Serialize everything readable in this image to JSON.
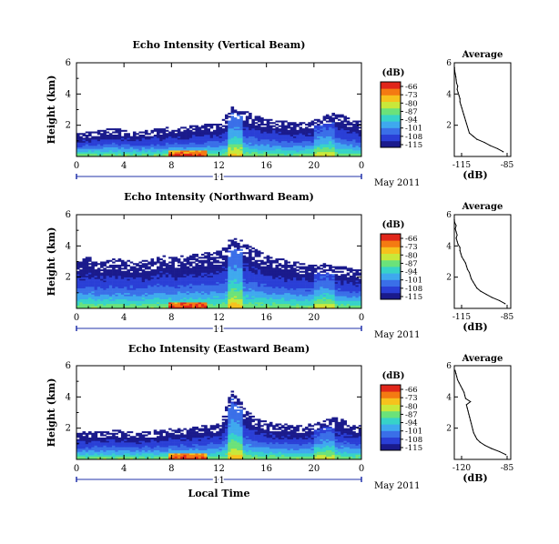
{
  "figure": {
    "date_label": "May 2011",
    "xaxis_bottom_label": "Local Time",
    "day_label": "11",
    "colors": {
      "background": "#ffffff",
      "axis": "#000000",
      "day_arrow": "#2233aa",
      "colormap": [
        "#1a1a8c",
        "#2a3fd6",
        "#3a6fe8",
        "#3fa9ee",
        "#37d3c8",
        "#6be27a",
        "#c9e83a",
        "#f6c21d",
        "#f47a12",
        "#e0261a"
      ]
    }
  },
  "chart_data": [
    {
      "type": "heatmap",
      "title": "Echo Intensity (Vertical Beam)",
      "ylabel": "Height (km)",
      "xticks": [
        "0",
        "4",
        "8",
        "12",
        "16",
        "20",
        "0"
      ],
      "xlim": [
        0,
        24
      ],
      "yticks": [
        "2",
        "4",
        "6"
      ],
      "ylim": [
        0,
        6
      ],
      "colorbar": {
        "label": "(dB)",
        "ticks": [
          "-66",
          "-73",
          "-80",
          "-87",
          "-94",
          "-101",
          "-108",
          "-115"
        ],
        "range": [
          -115,
          -66
        ]
      },
      "echo_top_km": [
        1.5,
        1.6,
        1.7,
        1.8,
        1.7,
        1.6,
        1.7,
        1.8,
        1.9,
        1.9,
        2.0,
        2.1,
        2.1,
        3.2,
        3.0,
        2.6,
        2.4,
        2.3,
        2.2,
        2.2,
        2.4,
        2.7,
        2.8,
        2.4,
        2.2
      ],
      "profile": {
        "title": "Average",
        "xlabel": "(dB)",
        "xticks": [
          "-115",
          "-85"
        ],
        "xlim": [
          -115,
          -85
        ],
        "yticks": [
          "2",
          "4",
          "6"
        ],
        "ylim": [
          0,
          6
        ],
        "height_km": [
          0.3,
          0.5,
          0.7,
          0.9,
          1.1,
          1.3,
          1.5,
          1.7,
          1.9,
          2.1,
          2.3,
          2.5,
          2.7,
          2.9,
          3.1,
          3.3,
          3.5,
          3.7,
          3.9,
          4.1,
          4.3,
          4.5,
          4.7,
          4.9,
          5.1,
          5.3,
          5.5,
          5.7
        ],
        "db": [
          -89,
          -92,
          -96,
          -99,
          -103,
          -105,
          -107,
          -107.5,
          -108,
          -108.5,
          -109,
          -109.5,
          -110,
          -110.5,
          -111,
          -111.5,
          -112,
          -112,
          -112.5,
          -113,
          -113.5,
          -113.2,
          -113.8,
          -114,
          -114.2,
          -114.5,
          -114.8,
          -114.9
        ]
      }
    },
    {
      "type": "heatmap",
      "title": "Echo Intensity (Northward Beam)",
      "ylabel": "Height (km)",
      "xticks": [
        "0",
        "4",
        "8",
        "12",
        "16",
        "20",
        "0"
      ],
      "xlim": [
        0,
        24
      ],
      "yticks": [
        "2",
        "4",
        "6"
      ],
      "ylim": [
        0,
        6
      ],
      "colorbar": {
        "label": "(dB)",
        "ticks": [
          "-66",
          "-73",
          "-80",
          "-87",
          "-94",
          "-101",
          "-108",
          "-115"
        ],
        "range": [
          -115,
          -66
        ]
      },
      "echo_top_km": [
        3.2,
        3.3,
        3.0,
        3.2,
        3.1,
        3.0,
        3.2,
        3.4,
        3.3,
        3.4,
        3.5,
        3.6,
        3.7,
        4.6,
        4.3,
        3.8,
        3.4,
        3.2,
        3.0,
        2.9,
        2.8,
        2.9,
        2.7,
        2.6,
        2.5
      ],
      "profile": {
        "title": "Average",
        "xlabel": "(dB)",
        "xticks": [
          "-115",
          "-85"
        ],
        "xlim": [
          -115,
          -85
        ],
        "yticks": [
          "2",
          "4",
          "6"
        ],
        "ylim": [
          0,
          6
        ],
        "height_km": [
          0.3,
          0.5,
          0.7,
          0.9,
          1.1,
          1.3,
          1.5,
          1.7,
          1.9,
          2.1,
          2.3,
          2.5,
          2.7,
          2.9,
          3.1,
          3.3,
          3.5,
          3.7,
          3.9,
          4.1,
          4.3,
          4.5,
          4.7,
          4.9,
          5.1,
          5.3,
          5.5,
          5.7
        ],
        "db": [
          -88,
          -91,
          -95,
          -98,
          -101,
          -103,
          -104,
          -105,
          -106,
          -106.5,
          -107,
          -108,
          -108.5,
          -109,
          -110,
          -111,
          -111.5,
          -112,
          -112,
          -113,
          -113.5,
          -114,
          -113.5,
          -114,
          -114.5,
          -114,
          -114.8,
          -115
        ]
      }
    },
    {
      "type": "heatmap",
      "title": "Echo Intensity (Eastward Beam)",
      "ylabel": "Height (km)",
      "xticks": [
        "0",
        "4",
        "8",
        "12",
        "16",
        "20",
        "0"
      ],
      "xlim": [
        0,
        24
      ],
      "yticks": [
        "2",
        "4",
        "6"
      ],
      "ylim": [
        0,
        6
      ],
      "colorbar": {
        "label": "(dB)",
        "ticks": [
          "-66",
          "-73",
          "-80",
          "-87",
          "-94",
          "-101",
          "-108",
          "-115"
        ],
        "range": [
          -115,
          -66
        ]
      },
      "echo_top_km": [
        1.7,
        1.8,
        1.8,
        1.9,
        1.8,
        1.7,
        1.8,
        1.9,
        2.0,
        2.0,
        2.1,
        2.2,
        2.3,
        4.5,
        3.4,
        2.7,
        2.4,
        2.3,
        2.2,
        2.2,
        2.3,
        2.6,
        2.7,
        2.3,
        2.2
      ],
      "profile": {
        "title": "Average",
        "xlabel": "(dB)",
        "xticks": [
          "-120",
          "-85"
        ],
        "xlim": [
          -120,
          -85
        ],
        "yticks": [
          "2",
          "4",
          "6"
        ],
        "ylim": [
          0,
          6
        ],
        "height_km": [
          0.3,
          0.5,
          0.7,
          0.9,
          1.1,
          1.3,
          1.5,
          1.7,
          1.9,
          2.1,
          2.3,
          2.5,
          2.7,
          2.9,
          3.1,
          3.3,
          3.5,
          3.7,
          3.9,
          4.1,
          4.3,
          4.5,
          4.7,
          4.9,
          5.1,
          5.3,
          5.5,
          5.7
        ],
        "db": [
          -88,
          -92,
          -97,
          -101,
          -104,
          -106,
          -107,
          -108,
          -108.5,
          -109,
          -109.5,
          -110,
          -110.5,
          -111,
          -111.5,
          -112,
          -112.5,
          -110,
          -113,
          -113.5,
          -114,
          -115,
          -116,
          -117,
          -118,
          -118.5,
          -119,
          -119.5
        ]
      }
    }
  ]
}
